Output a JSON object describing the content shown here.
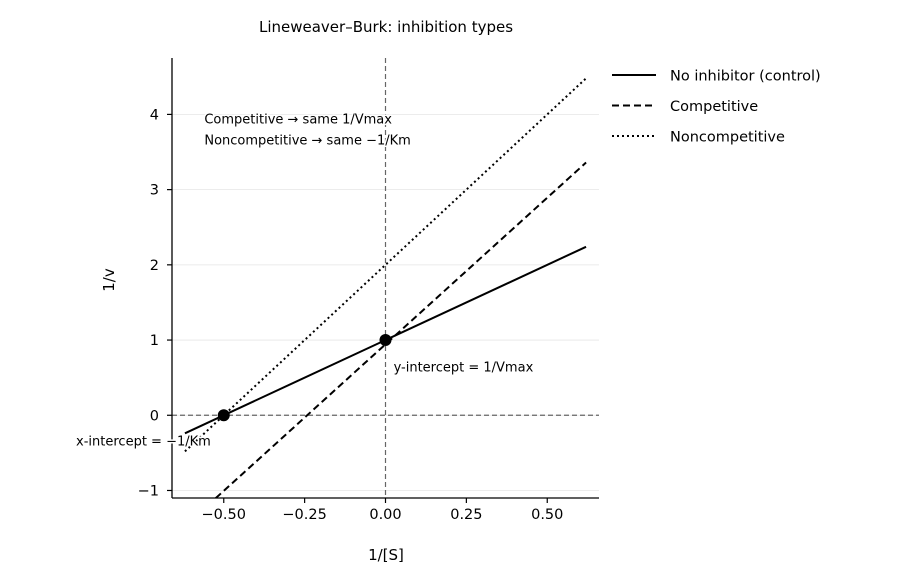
{
  "chart_data": {
    "type": "line",
    "title": "Lineweaver–Burk: inhibition types",
    "xlabel": "1/[S]",
    "ylabel": "1/v",
    "xlim": [
      -0.66,
      0.66
    ],
    "ylim": [
      -1.1,
      4.75
    ],
    "xticks": [
      -0.5,
      -0.25,
      0.0,
      0.25,
      0.5
    ],
    "xtick_labels": [
      "−0.50",
      "−0.25",
      "0.00",
      "0.25",
      "0.50"
    ],
    "yticks": [
      -1,
      0,
      1,
      2,
      3,
      4
    ],
    "ytick_labels": [
      "−1",
      "0",
      "1",
      "2",
      "3",
      "4"
    ],
    "grid": "horizontal",
    "legend_position": "outside-right",
    "series": [
      {
        "name": "No inhibitor (control)",
        "style": "solid",
        "color": "#000000",
        "x": [
          -0.62,
          0.62
        ],
        "y": [
          -0.24,
          2.24
        ]
      },
      {
        "name": "Competitive",
        "style": "dashed",
        "color": "#000000",
        "x": [
          -0.55,
          0.62
        ],
        "y": [
          -1.2,
          3.36
        ]
      },
      {
        "name": "Noncompetitive",
        "style": "dotted",
        "color": "#000000",
        "x": [
          -0.62,
          0.62
        ],
        "y": [
          -0.48,
          4.48
        ]
      }
    ],
    "markers": [
      {
        "x": -0.5,
        "y": 0
      },
      {
        "x": 0,
        "y": 1
      }
    ],
    "reference_lines": [
      {
        "axis": "x",
        "value": 0
      },
      {
        "axis": "y",
        "value": 0
      }
    ],
    "annotations": [
      {
        "text": "Competitive → same 1/Vmax",
        "x": -0.56,
        "y": 3.88,
        "anchor": "start"
      },
      {
        "text": "Noncompetitive → same −1/Km",
        "x": -0.56,
        "y": 3.6,
        "anchor": "start"
      },
      {
        "text": "y-intercept = 1/Vmax",
        "x": 0.025,
        "y": 0.58,
        "anchor": "start"
      },
      {
        "text": "x-intercept = −1/Km",
        "x": -0.54,
        "y": -0.4,
        "anchor": "end"
      }
    ]
  }
}
